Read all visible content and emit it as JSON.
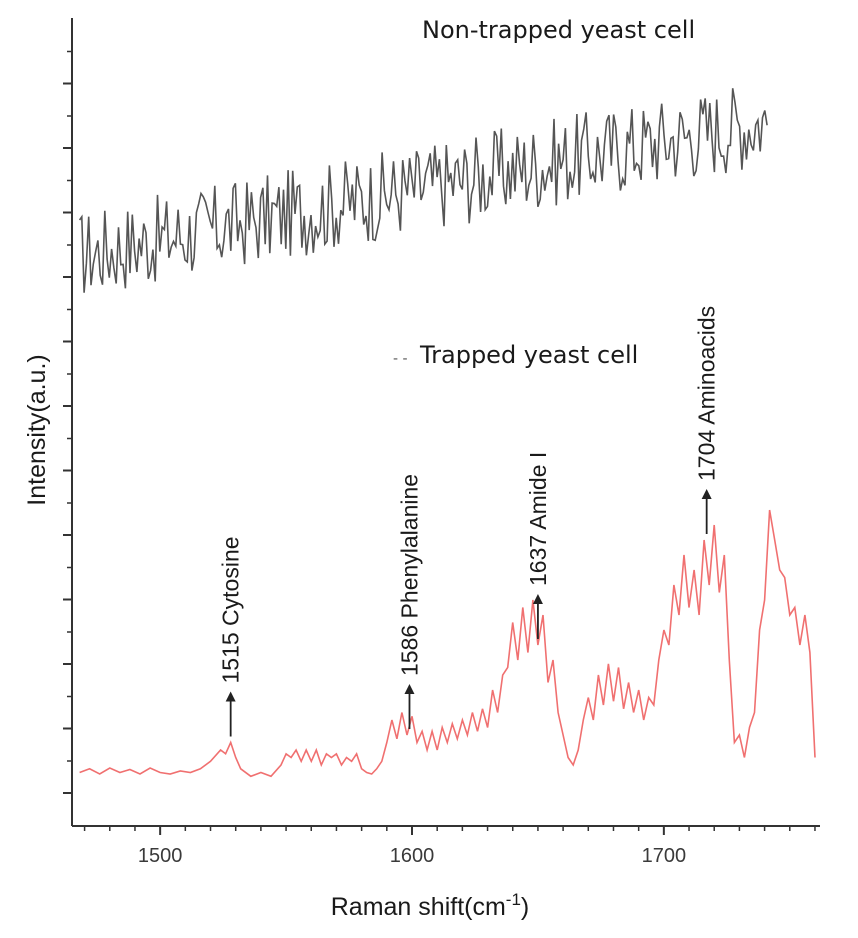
{
  "chart_data": {
    "type": "line",
    "xlabel": "Raman shift(cm",
    "xlabel_sup": "-1",
    "xlabel_tail": ")",
    "ylabel": "Intensity(a.u.)",
    "xlim": [
      1465,
      1762
    ],
    "x_ticks": [
      1500,
      1600,
      1700
    ],
    "ylim": [
      0,
      1
    ],
    "y_tick_count": 12,
    "grid": false,
    "series": [
      {
        "name": "Non-trapped yeast cell",
        "color": "#555555",
        "x_range": [
          1468,
          1741
        ],
        "y_base_start": 0.72,
        "y_base_end": 0.9,
        "noise": 0.06
      },
      {
        "name": "Trapped yeast cell",
        "color": "#f07070",
        "x": [
          1468,
          1472,
          1476,
          1480,
          1484,
          1488,
          1492,
          1496,
          1500,
          1504,
          1508,
          1512,
          1516,
          1520,
          1524,
          1526,
          1528,
          1530,
          1532,
          1536,
          1540,
          1544,
          1548,
          1550,
          1552,
          1554,
          1556,
          1558,
          1560,
          1562,
          1564,
          1566,
          1568,
          1570,
          1572,
          1574,
          1576,
          1578,
          1580,
          1582,
          1584,
          1586,
          1588,
          1590,
          1592,
          1594,
          1596,
          1598,
          1600,
          1602,
          1604,
          1606,
          1608,
          1610,
          1612,
          1614,
          1616,
          1618,
          1620,
          1622,
          1624,
          1626,
          1628,
          1630,
          1632,
          1634,
          1636,
          1638,
          1640,
          1642,
          1644,
          1646,
          1648,
          1650,
          1652,
          1654,
          1656,
          1658,
          1660,
          1662,
          1664,
          1666,
          1668,
          1670,
          1672,
          1674,
          1676,
          1678,
          1680,
          1682,
          1684,
          1686,
          1688,
          1690,
          1692,
          1694,
          1696,
          1698,
          1700,
          1702,
          1704,
          1706,
          1708,
          1710,
          1712,
          1714,
          1716,
          1718,
          1720,
          1722,
          1724,
          1726,
          1728,
          1730,
          1732,
          1734,
          1736,
          1738,
          1740,
          1742,
          1744,
          1746,
          1748,
          1750,
          1752,
          1754,
          1756,
          1758,
          1760
        ],
        "y": [
          0.03,
          0.035,
          0.028,
          0.036,
          0.03,
          0.034,
          0.028,
          0.036,
          0.03,
          0.028,
          0.032,
          0.03,
          0.035,
          0.045,
          0.06,
          0.055,
          0.07,
          0.05,
          0.035,
          0.025,
          0.03,
          0.025,
          0.04,
          0.055,
          0.05,
          0.06,
          0.045,
          0.06,
          0.045,
          0.06,
          0.04,
          0.055,
          0.05,
          0.055,
          0.04,
          0.05,
          0.045,
          0.055,
          0.035,
          0.03,
          0.028,
          0.035,
          0.045,
          0.07,
          0.1,
          0.075,
          0.11,
          0.08,
          0.105,
          0.07,
          0.085,
          0.06,
          0.085,
          0.06,
          0.09,
          0.07,
          0.095,
          0.075,
          0.1,
          0.08,
          0.11,
          0.085,
          0.115,
          0.09,
          0.14,
          0.11,
          0.16,
          0.17,
          0.23,
          0.18,
          0.25,
          0.19,
          0.26,
          0.2,
          0.24,
          0.15,
          0.18,
          0.11,
          0.08,
          0.05,
          0.04,
          0.06,
          0.1,
          0.13,
          0.1,
          0.16,
          0.12,
          0.175,
          0.125,
          0.17,
          0.115,
          0.15,
          0.11,
          0.14,
          0.1,
          0.13,
          0.12,
          0.18,
          0.22,
          0.2,
          0.28,
          0.24,
          0.32,
          0.25,
          0.3,
          0.24,
          0.34,
          0.28,
          0.36,
          0.27,
          0.32,
          0.18,
          0.07,
          0.08,
          0.05,
          0.09,
          0.11,
          0.22,
          0.26,
          0.38,
          0.34,
          0.3,
          0.29,
          0.24,
          0.25,
          0.2,
          0.24,
          0.19,
          0.05
        ]
      }
    ],
    "legend": [
      {
        "label": "Non-trapped yeast cell",
        "placement": "top-right"
      },
      {
        "label": "Trapped yeast cell",
        "placement": "middle-right",
        "marker": "- -"
      }
    ],
    "annotations": [
      {
        "text": "1515 Cytosine",
        "x": 1528
      },
      {
        "text": "1586 Phenylalanine",
        "x": 1599
      },
      {
        "text": "1637 Amide I",
        "x": 1650
      },
      {
        "text": "1704 Aminoacids",
        "x": 1717
      }
    ]
  }
}
